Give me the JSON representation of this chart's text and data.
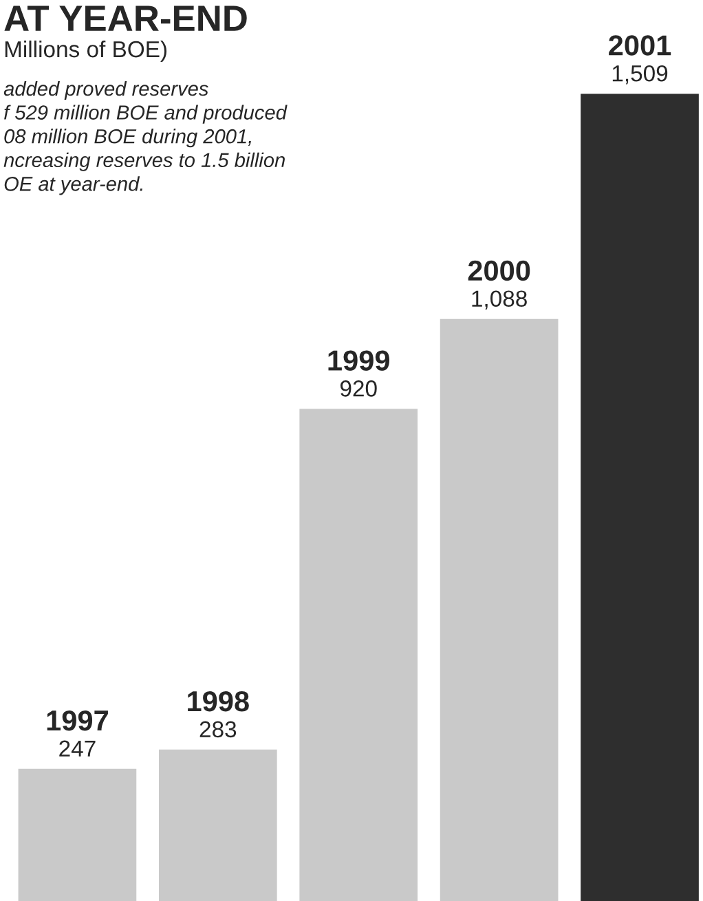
{
  "chart_data": {
    "type": "bar",
    "title": "AT YEAR-END",
    "subtitle": "Millions of BOE)",
    "annotations": [
      "added proved reserves\nf 529 million BOE and produced\n08 million BOE during 2001,\nncreasing reserves to 1.5 billion\nOE at year-end."
    ],
    "categories": [
      "1997",
      "1998",
      "1999",
      "2000",
      "2001"
    ],
    "values": [
      247,
      283,
      920,
      1088,
      1509
    ],
    "value_labels": [
      "247",
      "283",
      "920",
      "1,088",
      "1,509"
    ],
    "colors": [
      "#c9c9c9",
      "#c9c9c9",
      "#c9c9c9",
      "#c9c9c9",
      "#2e2e2e"
    ]
  }
}
